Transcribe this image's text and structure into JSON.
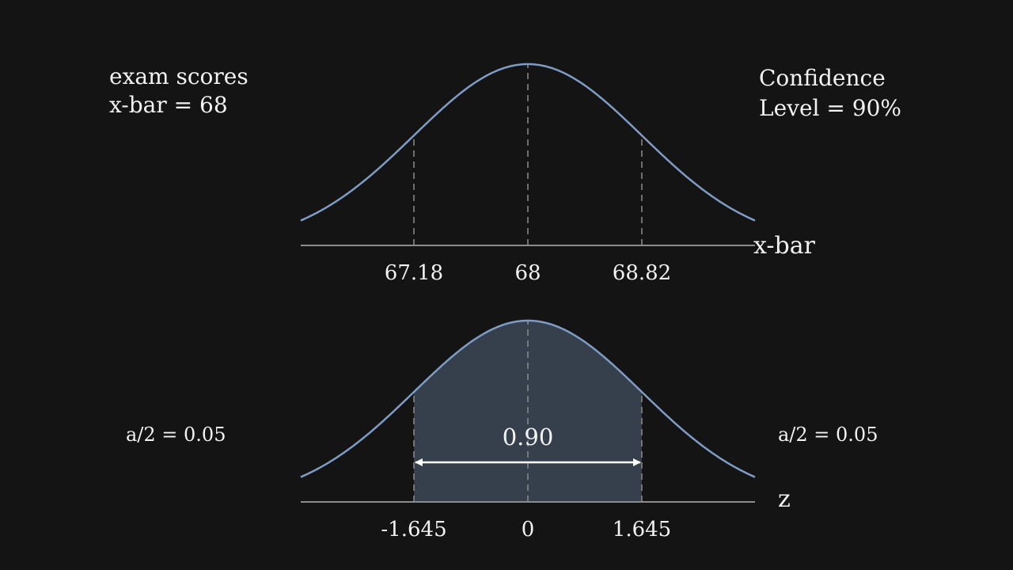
{
  "notes": {
    "dataset": "exam scores",
    "mean": "x-bar = 68",
    "confidence_line1": "Confidence",
    "confidence_line2": "Level = 90%"
  },
  "top_plot": {
    "axis_label": "x-bar",
    "ticks": [
      "67.18",
      "68",
      "68.82"
    ]
  },
  "bottom_plot": {
    "axis_label": "z",
    "ticks": [
      "-1.645",
      "0",
      "1.645"
    ],
    "center_area": "0.90",
    "left_tail": "a/2 = 0.05",
    "right_tail": "a/2 = 0.05"
  },
  "colors": {
    "background": "#141414",
    "curve": "#7f9cc4",
    "shade": "#36404d",
    "axis": "#8c8c8c",
    "guide": "#8c8c8c",
    "text": "#f2f2f2",
    "arrow": "#ffffff"
  }
}
